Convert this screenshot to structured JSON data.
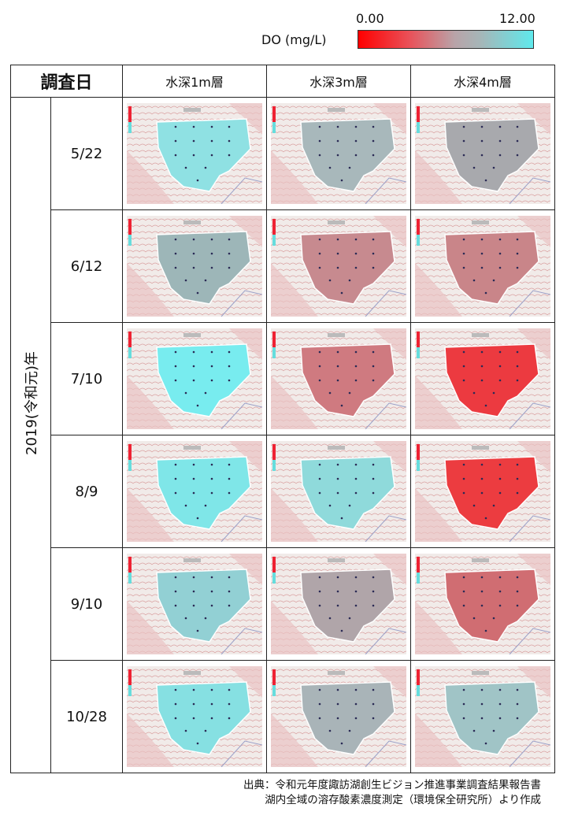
{
  "legend": {
    "label": "DO (mg/L)",
    "min": "0.00",
    "max": "12.00",
    "colors": [
      "#ff0000",
      "#e8535b",
      "#b9a3a8",
      "#a5b6b8",
      "#5fe9ec"
    ]
  },
  "table": {
    "header_date": "調査日",
    "depths": [
      "水深1m層",
      "水深3m層",
      "水深4m層"
    ],
    "year_label": "2019(令和元)年",
    "rows": [
      {
        "date": "5/22",
        "fills": [
          "#8fe1e3",
          "#a8b8bb",
          "#a8a9ad"
        ]
      },
      {
        "date": "6/12",
        "fills": [
          "#9db6b8",
          "#c78a8f",
          "#c98589"
        ]
      },
      {
        "date": "7/10",
        "fills": [
          "#78ecef",
          "#cf7a80",
          "#ec3a40"
        ]
      },
      {
        "date": "8/9",
        "fills": [
          "#7fe6e8",
          "#8fdadb",
          "#ec3c40"
        ]
      },
      {
        "date": "9/10",
        "fills": [
          "#92d0d4",
          "#b0a5a9",
          "#d06d72"
        ]
      },
      {
        "date": "10/28",
        "fills": [
          "#86e0e2",
          "#a9b4b8",
          "#a0c4c6"
        ]
      }
    ]
  },
  "source": {
    "line1": "出典：令和元年度諏訪湖創生ビジョン推進事業調査結果報告書",
    "line2": "湖内全域の溶存酸素濃度測定（環境保全研究所）より作成"
  }
}
